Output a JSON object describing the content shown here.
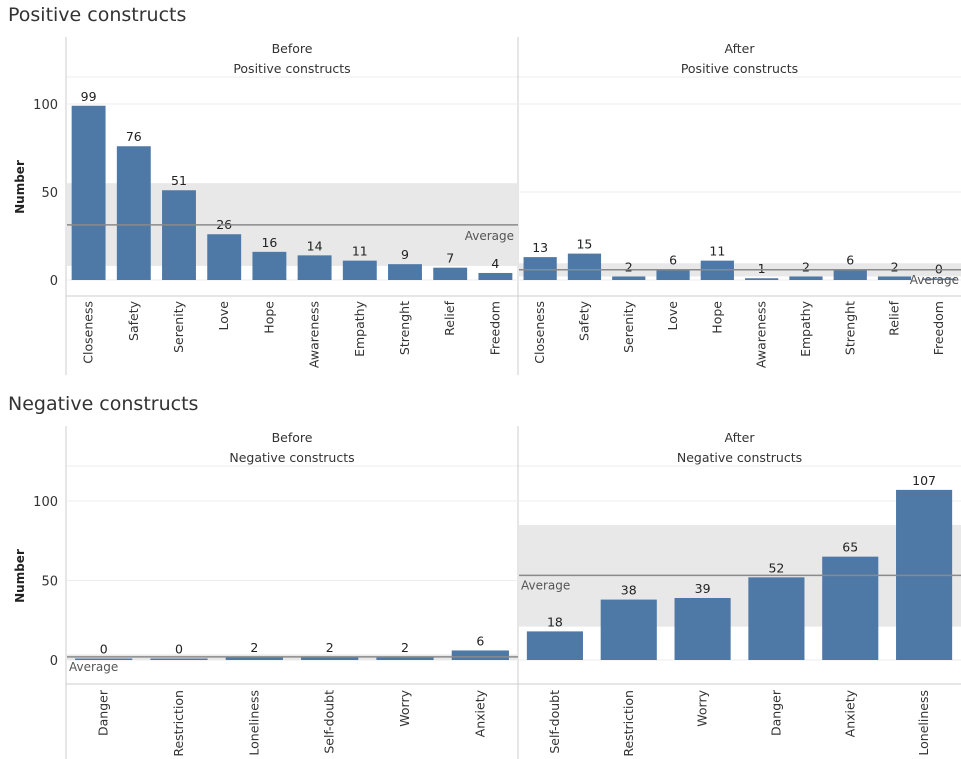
{
  "sections": [
    {
      "title": "Positive constructs",
      "ylabel": "Number",
      "yticks": [
        0,
        50,
        100
      ],
      "average_label": "Average",
      "panels": [
        {
          "header_line1": "Before",
          "header_line2": "Positive constructs",
          "average": 31.3,
          "band": [
            8,
            55
          ],
          "bars": [
            {
              "label": "Closeness",
              "value": 99
            },
            {
              "label": "Safety",
              "value": 76
            },
            {
              "label": "Serenity",
              "value": 51
            },
            {
              "label": "Love",
              "value": 26
            },
            {
              "label": "Hope",
              "value": 16
            },
            {
              "label": "Awareness",
              "value": 14
            },
            {
              "label": "Empathy",
              "value": 11
            },
            {
              "label": "Strenght",
              "value": 9
            },
            {
              "label": "Relief",
              "value": 7
            },
            {
              "label": "Freedom",
              "value": 4
            }
          ]
        },
        {
          "header_line1": "After",
          "header_line2": "Positive constructs",
          "average": 5.8,
          "band": [
            2,
            9.5
          ],
          "bars": [
            {
              "label": "Closeness",
              "value": 13
            },
            {
              "label": "Safety",
              "value": 15
            },
            {
              "label": "Serenity",
              "value": 2
            },
            {
              "label": "Love",
              "value": 6
            },
            {
              "label": "Hope",
              "value": 11
            },
            {
              "label": "Awareness",
              "value": 1
            },
            {
              "label": "Empathy",
              "value": 2
            },
            {
              "label": "Strenght",
              "value": 6
            },
            {
              "label": "Relief",
              "value": 2
            },
            {
              "label": "Freedom",
              "value": 0
            }
          ]
        }
      ]
    },
    {
      "title": "Negative constructs",
      "ylabel": "Number",
      "yticks": [
        0,
        50,
        100
      ],
      "average_label": "Average",
      "panels": [
        {
          "header_line1": "Before",
          "header_line2": "Negative constructs",
          "average": 2,
          "band": [
            0,
            3.5
          ],
          "bars": [
            {
              "label": "Danger",
              "value": 0
            },
            {
              "label": "Restriction",
              "value": 0
            },
            {
              "label": "Loneliness",
              "value": 2
            },
            {
              "label": "Self-doubt",
              "value": 2
            },
            {
              "label": "Worry",
              "value": 2
            },
            {
              "label": "Anxiety",
              "value": 6
            }
          ]
        },
        {
          "header_line1": "After",
          "header_line2": "Negative constructs",
          "average": 53.2,
          "band": [
            21,
            85
          ],
          "bars": [
            {
              "label": "Self-doubt",
              "value": 18
            },
            {
              "label": "Restriction",
              "value": 38
            },
            {
              "label": "Worry",
              "value": 39
            },
            {
              "label": "Danger",
              "value": 52
            },
            {
              "label": "Anxiety",
              "value": 65
            },
            {
              "label": "Loneliness",
              "value": 107
            }
          ]
        }
      ]
    }
  ],
  "chart_data": [
    {
      "type": "bar",
      "title": "Positive constructs",
      "ylabel": "Number",
      "series": [
        {
          "name": "Before",
          "categories": [
            "Closeness",
            "Safety",
            "Serenity",
            "Love",
            "Hope",
            "Awareness",
            "Empathy",
            "Strenght",
            "Relief",
            "Freedom"
          ],
          "values": [
            99,
            76,
            51,
            26,
            16,
            14,
            11,
            9,
            7,
            4
          ]
        },
        {
          "name": "After",
          "categories": [
            "Closeness",
            "Safety",
            "Serenity",
            "Love",
            "Hope",
            "Awareness",
            "Empathy",
            "Strenght",
            "Relief",
            "Freedom"
          ],
          "values": [
            13,
            15,
            2,
            6,
            11,
            1,
            2,
            6,
            2,
            0
          ]
        }
      ],
      "ylim": [
        -10,
        125
      ],
      "grid": true
    },
    {
      "type": "bar",
      "title": "Negative constructs",
      "ylabel": "Number",
      "series": [
        {
          "name": "Before",
          "categories": [
            "Danger",
            "Restriction",
            "Loneliness",
            "Self-doubt",
            "Worry",
            "Anxiety"
          ],
          "values": [
            0,
            0,
            2,
            2,
            2,
            6
          ]
        },
        {
          "name": "After",
          "categories": [
            "Self-doubt",
            "Restriction",
            "Worry",
            "Danger",
            "Anxiety",
            "Loneliness"
          ],
          "values": [
            18,
            38,
            39,
            52,
            65,
            107
          ]
        }
      ],
      "ylim": [
        -10,
        125
      ],
      "grid": true
    }
  ],
  "colors": {
    "bar": "#4e79a7",
    "band": "#e8e8e8",
    "average_line": "#8a8a8a",
    "grid": "#ececec",
    "divider": "#cccccc",
    "text": "#333333"
  }
}
